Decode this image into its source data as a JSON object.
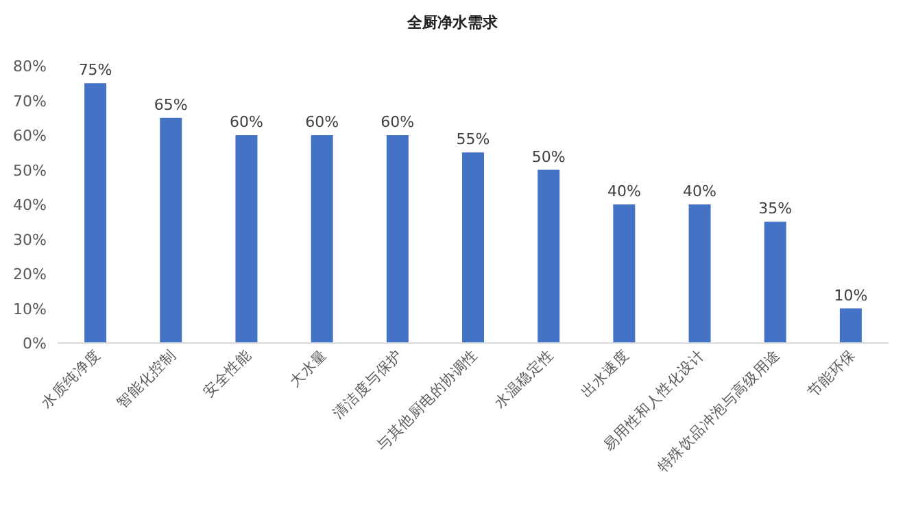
{
  "chart_data": {
    "type": "bar",
    "title": "全厨净水需求",
    "categories": [
      "水质纯净度",
      "智能化控制",
      "安全性能",
      "大水量",
      "清洁度与保护",
      "与其他厨电的协调性",
      "水温稳定性",
      "出水速度",
      "易用性和人性化设计",
      "特殊饮品冲泡与高级用途",
      "节能环保"
    ],
    "values": [
      75,
      65,
      60,
      60,
      60,
      55,
      50,
      40,
      40,
      35,
      10
    ],
    "value_labels": [
      "75%",
      "65%",
      "60%",
      "60%",
      "60%",
      "55%",
      "50%",
      "40%",
      "40%",
      "35%",
      "10%"
    ],
    "color": "#4472c4",
    "ylim": [
      0,
      80
    ],
    "yticks": [
      {
        "value": 0,
        "label": "0%"
      },
      {
        "value": 10,
        "label": "10%"
      },
      {
        "value": 20,
        "label": "20%"
      },
      {
        "value": 30,
        "label": "30%"
      },
      {
        "value": 40,
        "label": "40%"
      },
      {
        "value": 50,
        "label": "50%"
      },
      {
        "value": 60,
        "label": "60%"
      },
      {
        "value": 70,
        "label": "70%"
      },
      {
        "value": 80,
        "label": "80%"
      }
    ],
    "grid": false
  }
}
